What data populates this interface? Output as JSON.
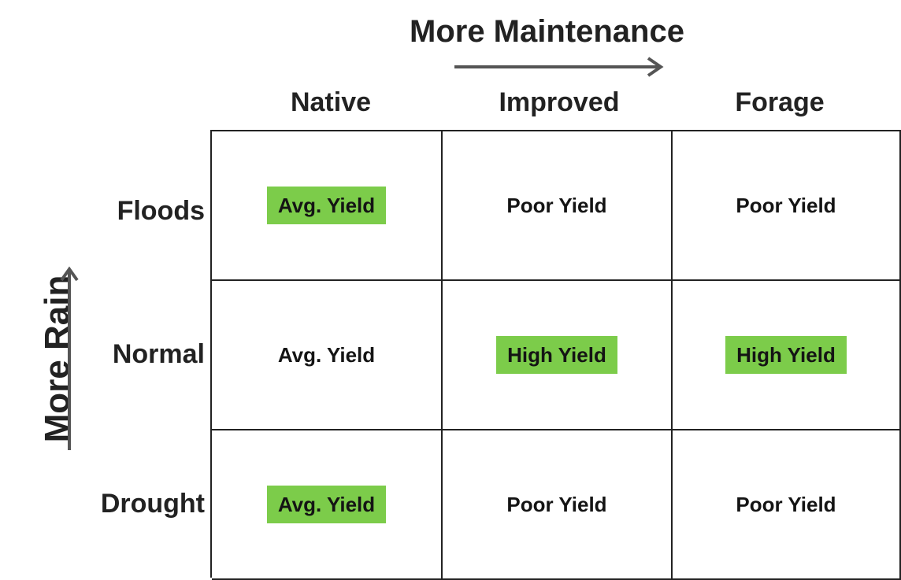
{
  "x_axis": {
    "title": "More Maintenance"
  },
  "y_axis": {
    "title": "More Rain"
  },
  "columns": [
    "Native",
    "Improved",
    "Forage"
  ],
  "rows": [
    "Floods",
    "Normal",
    "Drought"
  ],
  "cells": [
    [
      {
        "label": "Avg. Yield",
        "highlighted": true
      },
      {
        "label": "Poor Yield",
        "highlighted": false
      },
      {
        "label": "Poor Yield",
        "highlighted": false
      }
    ],
    [
      {
        "label": "Avg. Yield",
        "highlighted": false
      },
      {
        "label": "High Yield",
        "highlighted": true
      },
      {
        "label": "High Yield",
        "highlighted": true
      }
    ],
    [
      {
        "label": "Avg. Yield",
        "highlighted": true
      },
      {
        "label": "Poor Yield",
        "highlighted": false
      },
      {
        "label": "Poor Yield",
        "highlighted": false
      }
    ]
  ],
  "colors": {
    "highlight": "#7ccc4a",
    "arrow": "#555555",
    "grid": "#222222"
  }
}
